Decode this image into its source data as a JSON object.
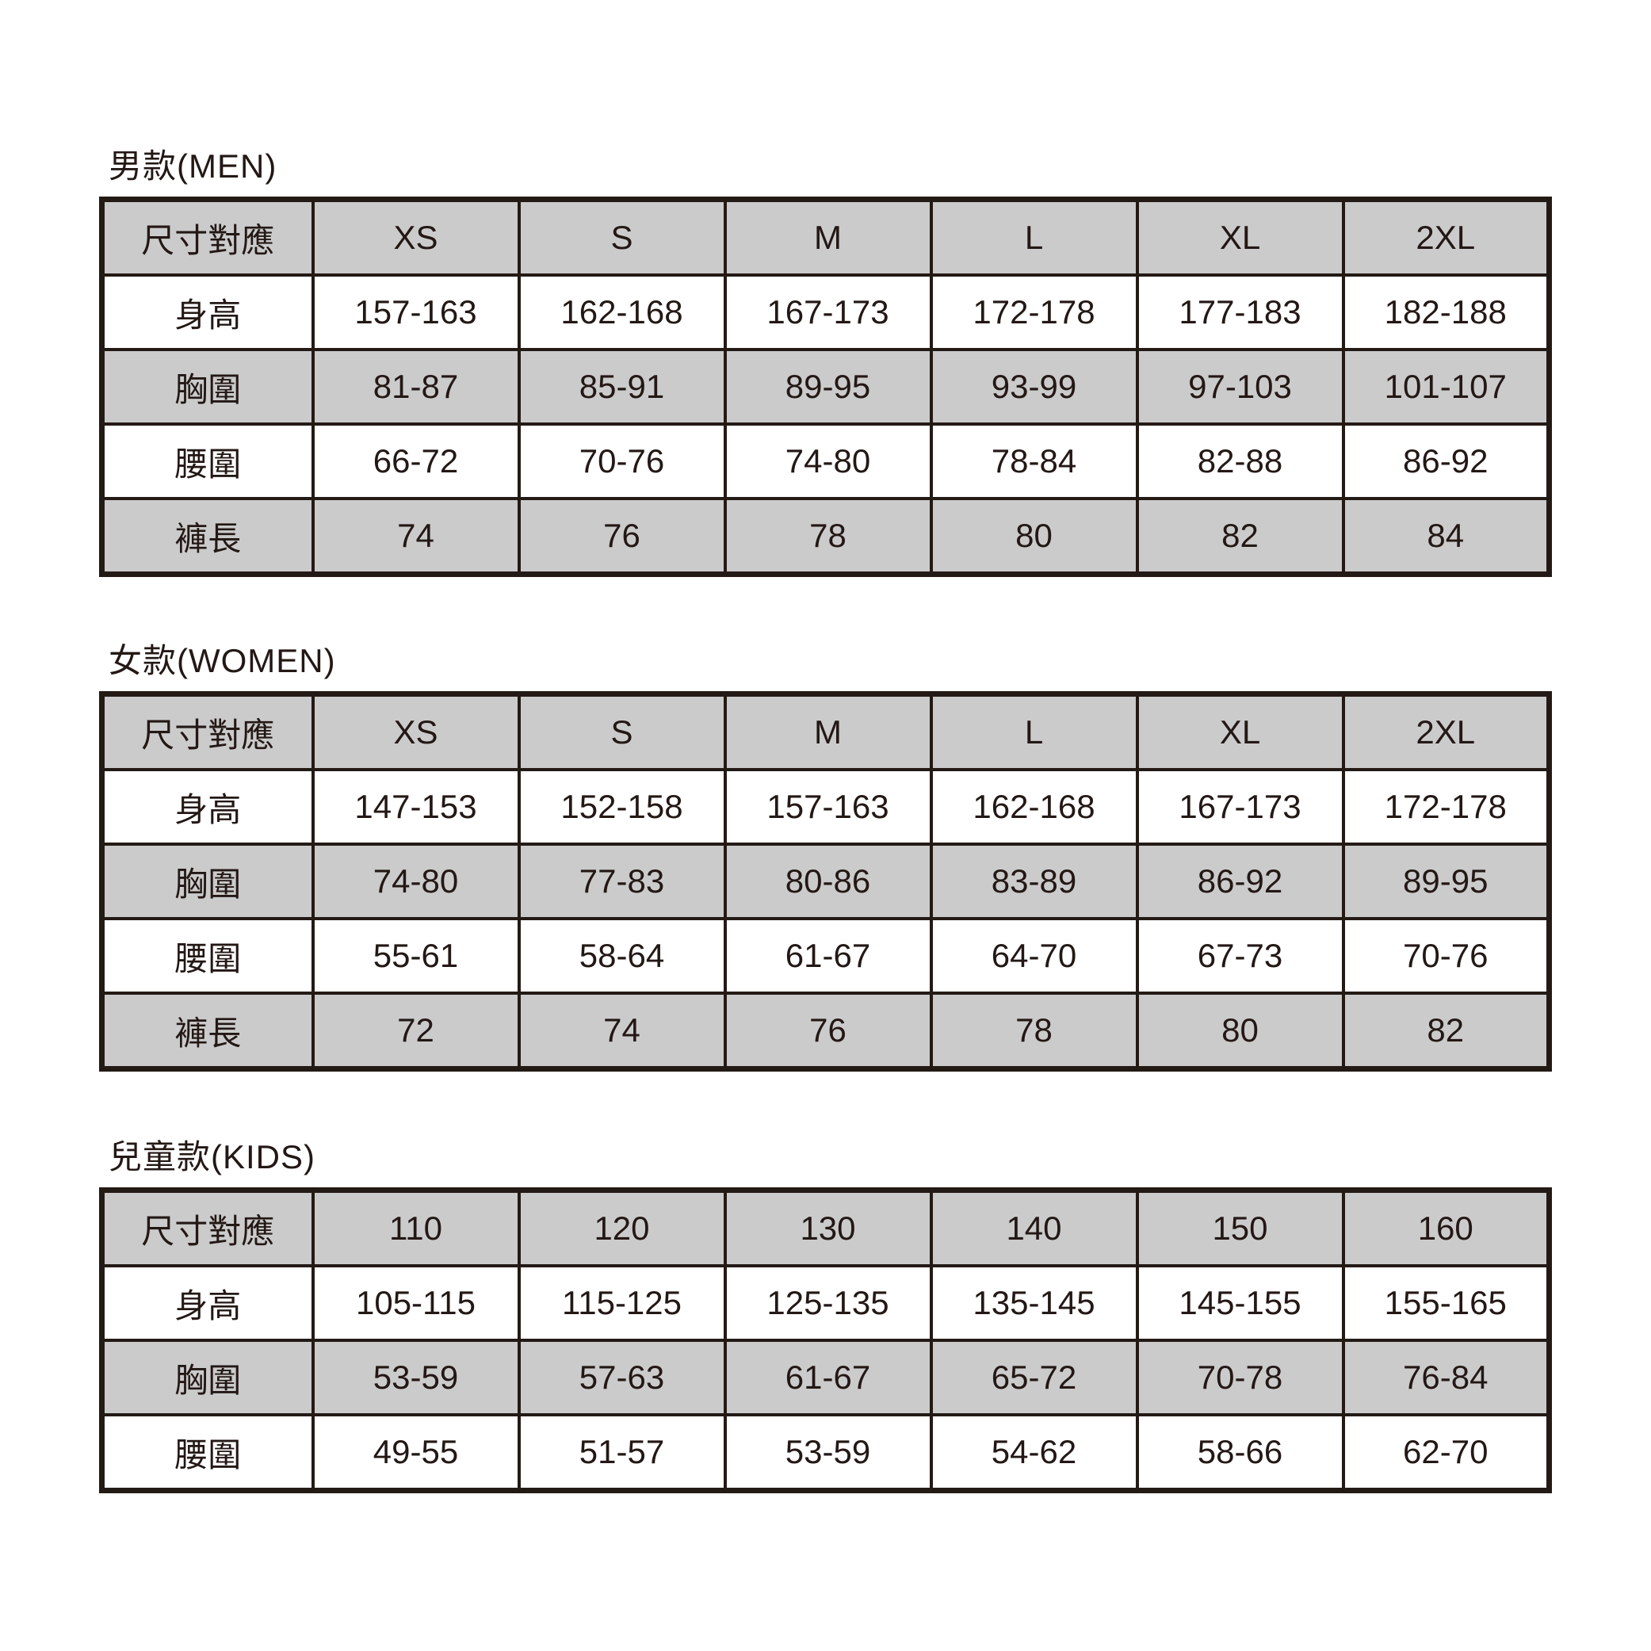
{
  "colors": {
    "shaded_fill": "#cbcbcb",
    "background": "#ffffff",
    "border": "#241a15",
    "text": "#231815"
  },
  "chart_data": [
    {
      "type": "table",
      "title": "男款(MEN)",
      "header_label": "尺寸對應",
      "columns": [
        "XS",
        "S",
        "M",
        "L",
        "XL",
        "2XL"
      ],
      "rows": [
        {
          "label": "身高",
          "values": [
            "157-163",
            "162-168",
            "167-173",
            "172-178",
            "177-183",
            "182-188"
          ]
        },
        {
          "label": "胸圍",
          "values": [
            "81-87",
            "85-91",
            "89-95",
            "93-99",
            "97-103",
            "101-107"
          ]
        },
        {
          "label": "腰圍",
          "values": [
            "66-72",
            "70-76",
            "74-80",
            "78-84",
            "82-88",
            "86-92"
          ]
        },
        {
          "label": "褲長",
          "values": [
            "74",
            "76",
            "78",
            "80",
            "82",
            "84"
          ]
        }
      ]
    },
    {
      "type": "table",
      "title": "女款(WOMEN)",
      "header_label": "尺寸對應",
      "columns": [
        "XS",
        "S",
        "M",
        "L",
        "XL",
        "2XL"
      ],
      "rows": [
        {
          "label": "身高",
          "values": [
            "147-153",
            "152-158",
            "157-163",
            "162-168",
            "167-173",
            "172-178"
          ]
        },
        {
          "label": "胸圍",
          "values": [
            "74-80",
            "77-83",
            "80-86",
            "83-89",
            "86-92",
            "89-95"
          ]
        },
        {
          "label": "腰圍",
          "values": [
            "55-61",
            "58-64",
            "61-67",
            "64-70",
            "67-73",
            "70-76"
          ]
        },
        {
          "label": "褲長",
          "values": [
            "72",
            "74",
            "76",
            "78",
            "80",
            "82"
          ]
        }
      ]
    },
    {
      "type": "table",
      "title": "兒童款(KIDS)",
      "header_label": "尺寸對應",
      "columns": [
        "110",
        "120",
        "130",
        "140",
        "150",
        "160"
      ],
      "rows": [
        {
          "label": "身高",
          "values": [
            "105-115",
            "115-125",
            "125-135",
            "135-145",
            "145-155",
            "155-165"
          ]
        },
        {
          "label": "胸圍",
          "values": [
            "53-59",
            "57-63",
            "61-67",
            "65-72",
            "70-78",
            "76-84"
          ]
        },
        {
          "label": "腰圍",
          "values": [
            "49-55",
            "51-57",
            "53-59",
            "54-62",
            "58-66",
            "62-70"
          ]
        }
      ]
    }
  ]
}
